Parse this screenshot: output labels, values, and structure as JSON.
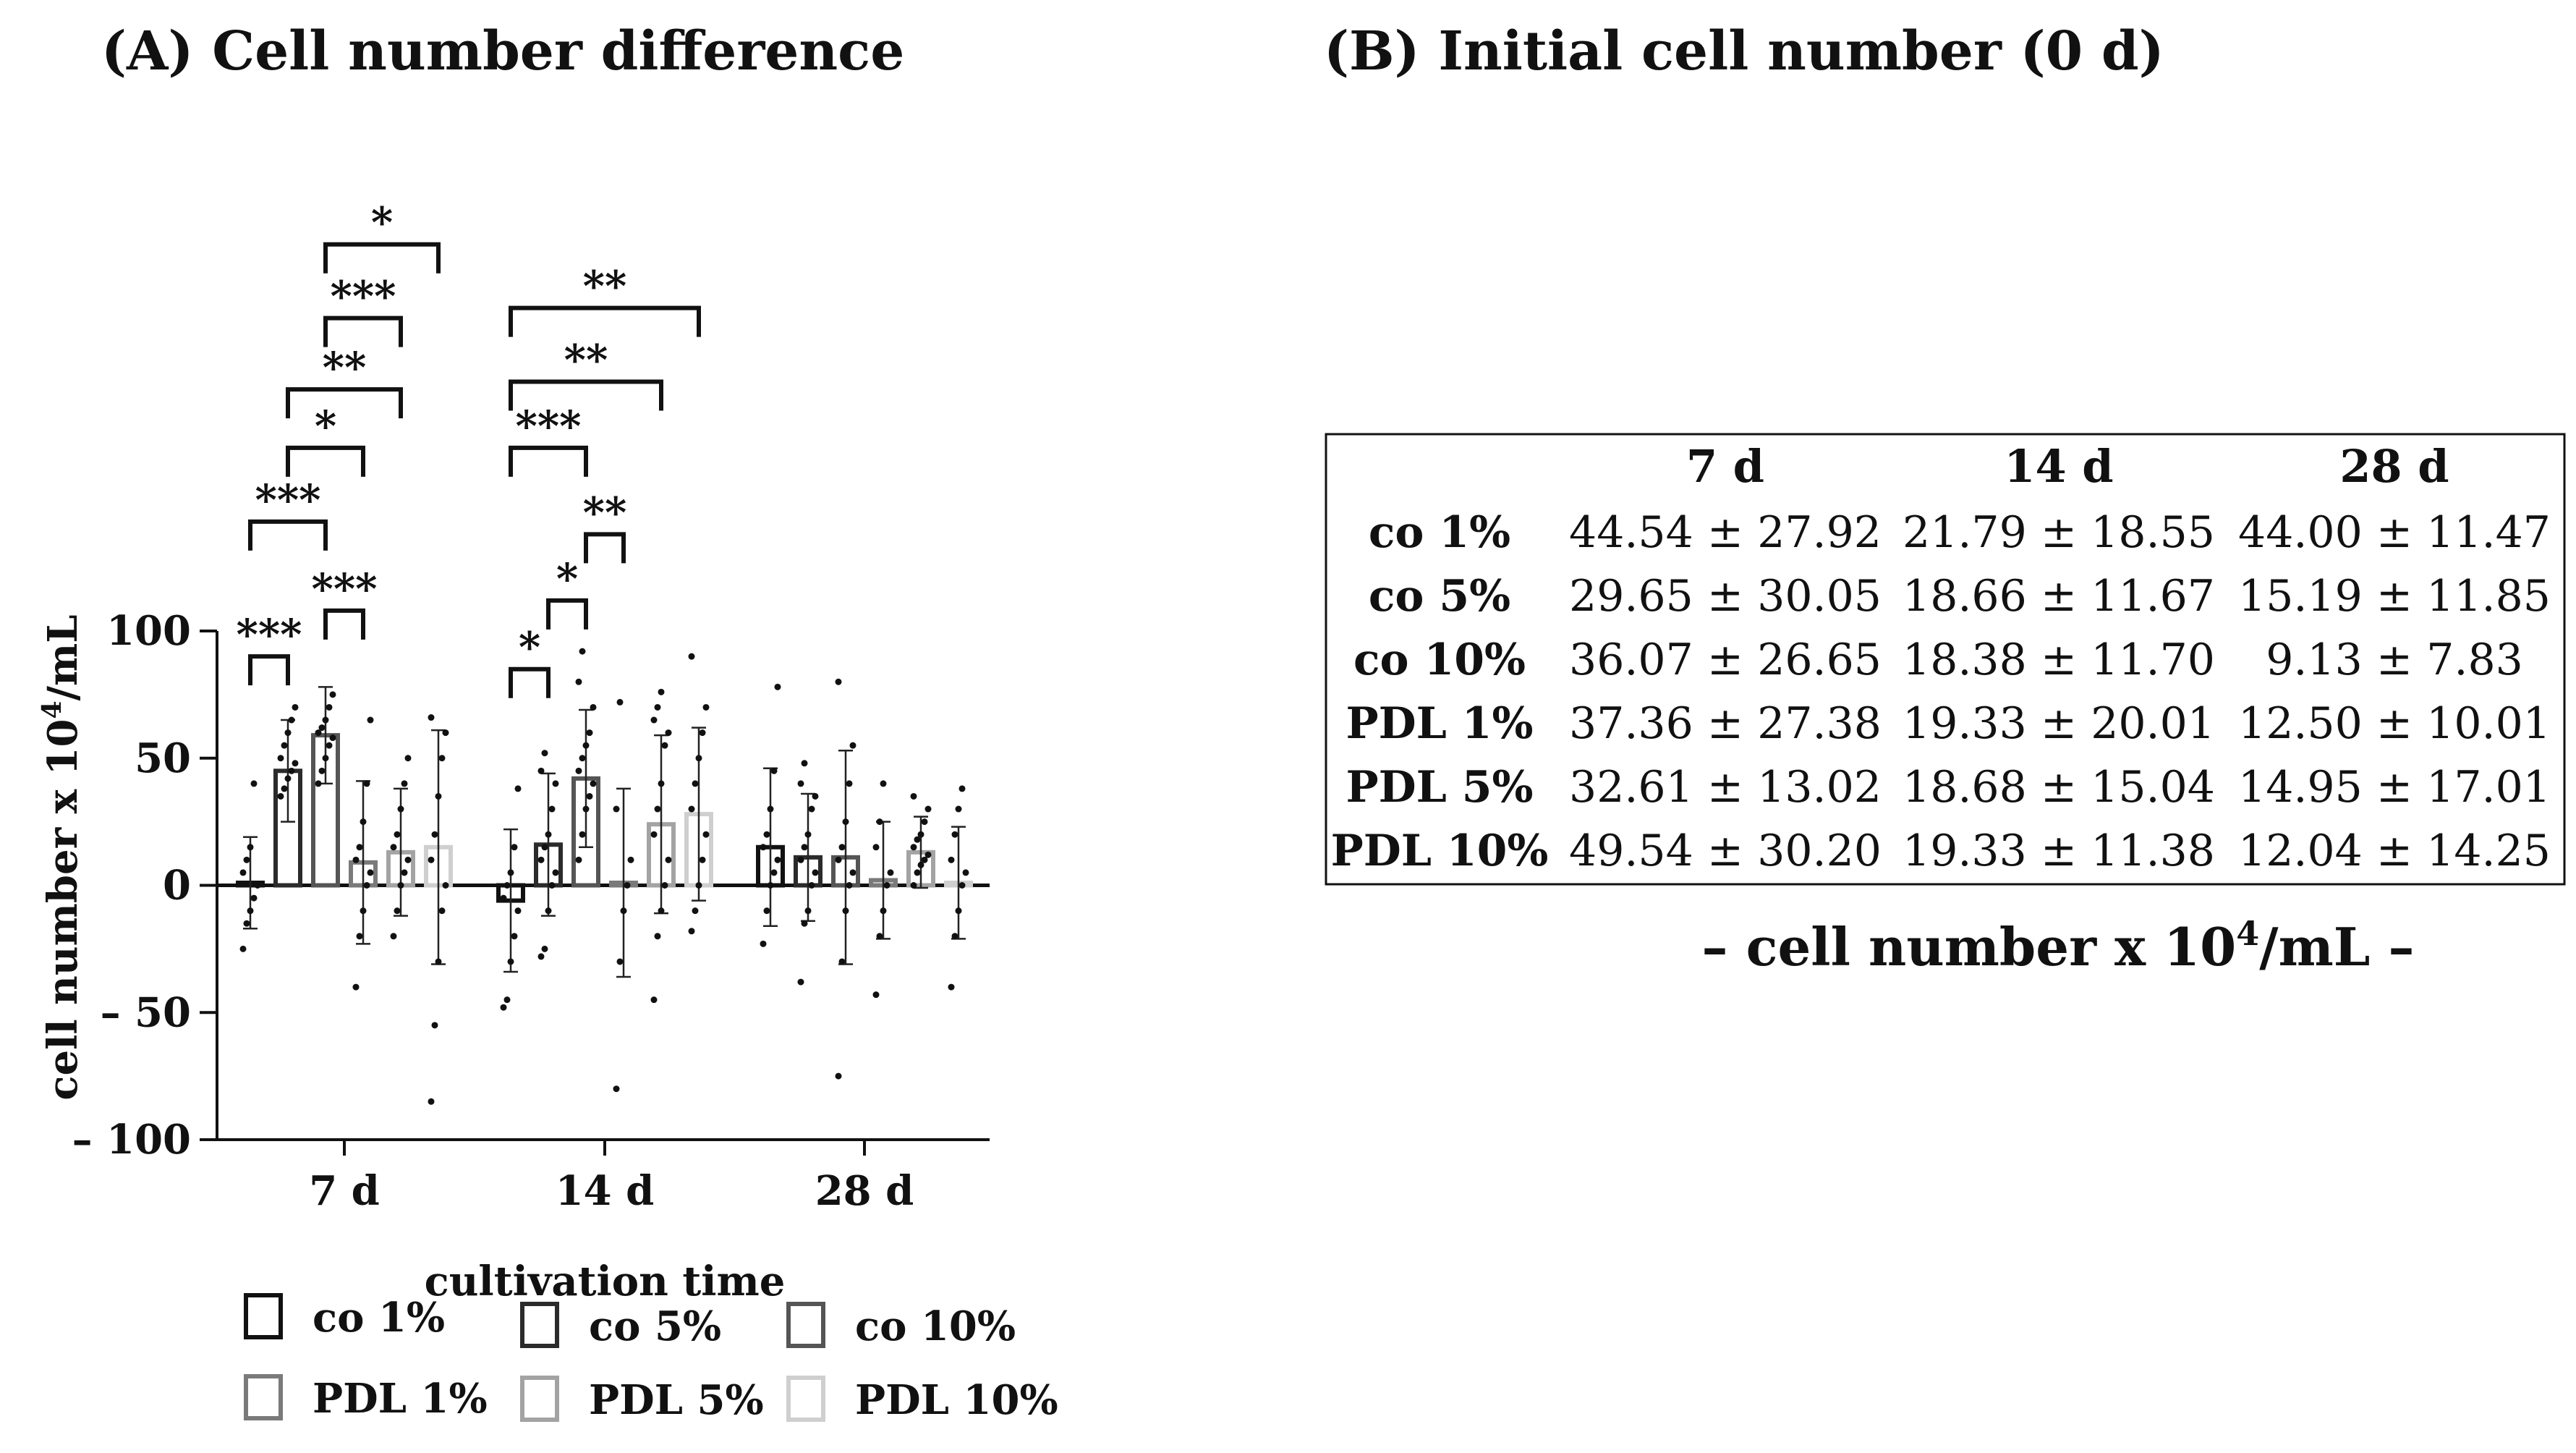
{
  "panel_a": {
    "title": "(A) Cell number difference"
  },
  "panel_b": {
    "title": "(B) Initial cell number (0 d)",
    "columns": [
      "7 d",
      "14 d",
      "28 d"
    ],
    "rows": [
      {
        "label": "co 1%",
        "values": [
          "44.54 ± 27.92",
          "21.79 ± 18.55",
          "44.00 ± 11.47"
        ]
      },
      {
        "label": "co 5%",
        "values": [
          "29.65 ± 30.05",
          "18.66 ± 11.67",
          "15.19 ± 11.85"
        ]
      },
      {
        "label": "co 10%",
        "values": [
          "36.07 ± 26.65",
          "18.38 ± 11.70",
          "9.13 ± 7.83"
        ]
      },
      {
        "label": "PDL 1%",
        "values": [
          "37.36 ± 27.38",
          "19.33 ± 20.01",
          "12.50 ± 10.01"
        ]
      },
      {
        "label": "PDL 5%",
        "values": [
          "32.61 ± 13.02",
          "18.68 ± 15.04",
          "14.95 ± 17.01"
        ]
      },
      {
        "label": "PDL 10%",
        "values": [
          "49.54 ± 30.20",
          "19.33 ± 11.38",
          "12.04 ± 14.25"
        ]
      }
    ],
    "unit_prefix": "– cell number x 10",
    "unit_sup": "4",
    "unit_suffix": "/mL –"
  },
  "chart_data": {
    "type": "bar",
    "categories": [
      "7 d",
      "14 d",
      "28 d"
    ],
    "xlabel": "cultivation time",
    "ylabel_prefix": "cell number x 10",
    "ylabel_sup": "4",
    "ylabel_suffix": "/mL",
    "ylim": [
      -100,
      100
    ],
    "yticks": [
      100,
      50,
      0,
      -50,
      -100
    ],
    "ytick_labels": [
      "100",
      "50",
      "0",
      "– 50",
      "– 100"
    ],
    "grid": false,
    "legend_position": "bottom",
    "series": [
      {
        "name": "co 1%",
        "color": "#111111",
        "values": [
          1,
          -6,
          15
        ],
        "errors": [
          18,
          28,
          31
        ]
      },
      {
        "name": "co 5%",
        "color": "#2b2b2b",
        "values": [
          45,
          16,
          11
        ],
        "errors": [
          20,
          28,
          25
        ]
      },
      {
        "name": "co 10%",
        "color": "#555555",
        "values": [
          59,
          42,
          11
        ],
        "errors": [
          19,
          27,
          42
        ]
      },
      {
        "name": "PDL 1%",
        "color": "#7a7a7a",
        "values": [
          9,
          1,
          2
        ],
        "errors": [
          32,
          37,
          23
        ]
      },
      {
        "name": "PDL 5%",
        "color": "#a3a3a3",
        "values": [
          13,
          24,
          13
        ],
        "errors": [
          25,
          35,
          14
        ]
      },
      {
        "name": "PDL 10%",
        "color": "#cfcfcf",
        "values": [
          15,
          28,
          1
        ],
        "errors": [
          46,
          34,
          22
        ]
      }
    ],
    "points": [
      [
        [
          -25,
          -15,
          -10,
          -5,
          0,
          5,
          10,
          15,
          40
        ],
        [
          -48,
          -45,
          -30,
          -20,
          -10,
          -5,
          0,
          5,
          15,
          38
        ],
        [
          -23,
          -10,
          0,
          5,
          10,
          15,
          20,
          30,
          45,
          78
        ]
      ],
      [
        [
          35,
          38,
          42,
          45,
          48,
          50,
          55,
          60,
          65,
          70
        ],
        [
          -28,
          -25,
          -10,
          0,
          5,
          10,
          15,
          20,
          30,
          40,
          45,
          52
        ],
        [
          -38,
          -15,
          -10,
          0,
          5,
          10,
          15,
          20,
          30,
          35,
          40,
          48
        ]
      ],
      [
        [
          40,
          45,
          50,
          55,
          58,
          60,
          62,
          65,
          70,
          75
        ],
        [
          10,
          20,
          30,
          35,
          40,
          45,
          50,
          55,
          60,
          70,
          80,
          92
        ],
        [
          -75,
          -30,
          -10,
          0,
          5,
          10,
          15,
          25,
          40,
          55,
          80
        ]
      ],
      [
        [
          -40,
          -20,
          -10,
          0,
          5,
          10,
          15,
          25,
          40,
          65
        ],
        [
          -80,
          -30,
          -10,
          0,
          10,
          30,
          72
        ],
        [
          -43,
          -20,
          -10,
          0,
          5,
          15,
          25,
          40
        ]
      ],
      [
        [
          -20,
          -10,
          0,
          5,
          10,
          15,
          20,
          30,
          40,
          50
        ],
        [
          -45,
          -20,
          -10,
          0,
          10,
          20,
          30,
          40,
          55,
          60,
          65,
          70,
          76
        ],
        [
          0,
          5,
          8,
          10,
          12,
          15,
          18,
          20,
          25,
          30,
          35
        ]
      ],
      [
        [
          -85,
          -55,
          -30,
          -10,
          0,
          10,
          20,
          35,
          50,
          60,
          66
        ],
        [
          -18,
          -10,
          0,
          10,
          20,
          30,
          40,
          50,
          60,
          70,
          90
        ],
        [
          -40,
          -20,
          -10,
          0,
          5,
          10,
          20,
          30,
          38
        ]
      ]
    ],
    "significance": [
      {
        "label": "***",
        "group": 0,
        "from": 0,
        "to": 1,
        "y": 90
      },
      {
        "label": "***",
        "group": 0,
        "from": 2,
        "to": 3,
        "y": 108
      },
      {
        "label": "***",
        "group": 0,
        "from": 0,
        "to": 2,
        "y": 143
      },
      {
        "label": "*",
        "group": 0,
        "from": 1,
        "to": 3,
        "y": 172
      },
      {
        "label": "**",
        "group": 0,
        "from": 1,
        "to": 4,
        "y": 195
      },
      {
        "label": "***",
        "group": 0,
        "from": 2,
        "to": 4,
        "y": 223
      },
      {
        "label": "*",
        "group": 0,
        "from": 2,
        "to": 5,
        "y": 252
      },
      {
        "label": "*",
        "group": 1,
        "from": 0,
        "to": 1,
        "y": 85
      },
      {
        "label": "*",
        "group": 1,
        "from": 1,
        "to": 2,
        "y": 112
      },
      {
        "label": "**",
        "group": 1,
        "from": 2,
        "to": 3,
        "y": 138
      },
      {
        "label": "***",
        "group": 1,
        "from": 0,
        "to": 2,
        "y": 172
      },
      {
        "label": "**",
        "group": 1,
        "from": 0,
        "to": 4,
        "y": 198
      },
      {
        "label": "**",
        "group": 1,
        "from": 0,
        "to": 5,
        "y": 227
      }
    ]
  }
}
